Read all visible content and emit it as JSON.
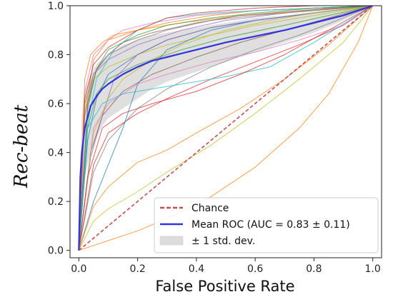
{
  "chart_data": {
    "type": "line",
    "title": "",
    "xlabel": "False Positive Rate",
    "ylabel": "Rec-beat",
    "xlim": [
      -0.03,
      1.03
    ],
    "ylim": [
      -0.03,
      1.0
    ],
    "xticks": [
      "0.0",
      "0.2",
      "0.4",
      "0.6",
      "0.8",
      "1.0"
    ],
    "yticks": [
      "0.0",
      "0.2",
      "0.4",
      "0.6",
      "0.8",
      "1.0"
    ],
    "grid": false,
    "legend_position": "bottom-right",
    "legend": {
      "chance": "Chance",
      "mean": "Mean ROC (AUC = 0.83 ± 0.11)",
      "std": "± 1 std. dev."
    },
    "chance_line": {
      "x": [
        0,
        1
      ],
      "y": [
        0,
        1
      ],
      "color": "#c0504d",
      "style": "dashed"
    },
    "mean_roc": {
      "color": "#3333dd",
      "x": [
        0,
        0.005,
        0.01,
        0.02,
        0.04,
        0.06,
        0.08,
        0.1,
        0.15,
        0.2,
        0.25,
        0.3,
        0.4,
        0.5,
        0.6,
        0.7,
        0.8,
        0.9,
        1.0
      ],
      "y": [
        0,
        0.3,
        0.4,
        0.5,
        0.59,
        0.63,
        0.66,
        0.68,
        0.72,
        0.75,
        0.775,
        0.79,
        0.82,
        0.85,
        0.875,
        0.9,
        0.93,
        0.96,
        1.0
      ]
    },
    "std_band": {
      "color": "#dcdcdc",
      "x": [
        0,
        0.01,
        0.02,
        0.04,
        0.06,
        0.08,
        0.1,
        0.15,
        0.2,
        0.25,
        0.3,
        0.4,
        0.5,
        0.6,
        0.7,
        0.8,
        0.9,
        1.0
      ],
      "upper": [
        0.1,
        0.55,
        0.65,
        0.72,
        0.76,
        0.78,
        0.8,
        0.84,
        0.86,
        0.88,
        0.89,
        0.91,
        0.93,
        0.95,
        0.96,
        0.975,
        0.99,
        1.0
      ],
      "lower": [
        0,
        0.2,
        0.3,
        0.4,
        0.46,
        0.51,
        0.54,
        0.58,
        0.62,
        0.66,
        0.69,
        0.73,
        0.77,
        0.81,
        0.85,
        0.89,
        0.94,
        1.0
      ]
    },
    "fold_curves": [
      {
        "color": "#1f77b4",
        "x": [
          0,
          0.03,
          0.06,
          0.1,
          0.2,
          0.3,
          0.45,
          0.6,
          0.8,
          1.0
        ],
        "y": [
          0,
          0.45,
          0.62,
          0.72,
          0.8,
          0.86,
          0.91,
          0.94,
          0.97,
          1.0
        ]
      },
      {
        "color": "#ff7f0e",
        "x": [
          0,
          0.02,
          0.05,
          0.1,
          0.2,
          0.3,
          0.45,
          0.6,
          0.8,
          1.0
        ],
        "y": [
          0,
          0.55,
          0.78,
          0.86,
          0.9,
          0.93,
          0.96,
          0.98,
          0.99,
          1.0
        ]
      },
      {
        "color": "#2ca02c",
        "x": [
          0,
          0.03,
          0.06,
          0.1,
          0.2,
          0.35,
          0.5,
          0.7,
          0.85,
          1.0
        ],
        "y": [
          0,
          0.5,
          0.64,
          0.7,
          0.76,
          0.82,
          0.87,
          0.92,
          0.96,
          1.0
        ]
      },
      {
        "color": "#d62728",
        "x": [
          0,
          0.05,
          0.1,
          0.2,
          0.3,
          0.45,
          0.6,
          0.75,
          0.9,
          1.0
        ],
        "y": [
          0,
          0.35,
          0.48,
          0.56,
          0.62,
          0.7,
          0.77,
          0.84,
          0.92,
          1.0
        ]
      },
      {
        "color": "#9467bd",
        "x": [
          0,
          0.02,
          0.05,
          0.1,
          0.2,
          0.35,
          0.5,
          0.7,
          0.85,
          1.0
        ],
        "y": [
          0,
          0.6,
          0.72,
          0.78,
          0.84,
          0.9,
          0.94,
          0.97,
          0.99,
          1.0
        ]
      },
      {
        "color": "#8c564b",
        "x": [
          0,
          0.04,
          0.08,
          0.15,
          0.25,
          0.4,
          0.55,
          0.7,
          0.85,
          1.0
        ],
        "y": [
          0,
          0.4,
          0.55,
          0.65,
          0.72,
          0.79,
          0.85,
          0.9,
          0.95,
          1.0
        ]
      },
      {
        "color": "#e377c2",
        "x": [
          0,
          0.02,
          0.05,
          0.1,
          0.15,
          0.25,
          0.4,
          0.6,
          0.8,
          1.0
        ],
        "y": [
          0,
          0.65,
          0.8,
          0.86,
          0.9,
          0.93,
          0.96,
          0.98,
          0.99,
          1.0
        ]
      },
      {
        "color": "#7f7f7f",
        "x": [
          0,
          0.05,
          0.1,
          0.2,
          0.3,
          0.45,
          0.6,
          0.75,
          0.9,
          1.0
        ],
        "y": [
          0,
          0.32,
          0.45,
          0.58,
          0.66,
          0.75,
          0.82,
          0.88,
          0.95,
          1.0
        ]
      },
      {
        "color": "#bcbd22",
        "x": [
          0,
          0.02,
          0.05,
          0.1,
          0.2,
          0.3,
          0.45,
          0.6,
          0.8,
          1.0
        ],
        "y": [
          0,
          0.6,
          0.7,
          0.75,
          0.8,
          0.84,
          0.88,
          0.92,
          0.96,
          1.0
        ]
      },
      {
        "color": "#17becf",
        "x": [
          0,
          0.03,
          0.06,
          0.12,
          0.2,
          0.3,
          0.45,
          0.6,
          0.8,
          1.0
        ],
        "y": [
          0,
          0.52,
          0.7,
          0.82,
          0.9,
          0.95,
          0.97,
          0.98,
          0.99,
          1.0
        ]
      },
      {
        "color": "#1f77b4",
        "x": [
          0,
          0.05,
          0.1,
          0.15,
          0.2,
          0.3,
          0.45,
          0.6,
          0.8,
          1.0
        ],
        "y": [
          0,
          0.2,
          0.35,
          0.5,
          0.68,
          0.82,
          0.9,
          0.94,
          0.97,
          1.0
        ]
      },
      {
        "color": "#ff7f0e",
        "x": [
          0,
          0.02,
          0.04,
          0.08,
          0.12,
          0.2,
          0.35,
          0.55,
          0.8,
          1.0
        ],
        "y": [
          0,
          0.7,
          0.8,
          0.85,
          0.88,
          0.9,
          0.93,
          0.96,
          0.98,
          1.0
        ]
      },
      {
        "color": "#2ca02c",
        "x": [
          0,
          0.03,
          0.06,
          0.1,
          0.2,
          0.3,
          0.45,
          0.6,
          0.8,
          1.0
        ],
        "y": [
          0,
          0.58,
          0.74,
          0.82,
          0.88,
          0.92,
          0.95,
          0.97,
          0.99,
          1.0
        ]
      },
      {
        "color": "#d62728",
        "x": [
          0,
          0.02,
          0.05,
          0.1,
          0.2,
          0.3,
          0.4,
          0.6,
          0.8,
          1.0
        ],
        "y": [
          0,
          0.62,
          0.76,
          0.83,
          0.9,
          0.95,
          0.97,
          0.99,
          1.0,
          1.0
        ]
      },
      {
        "color": "#9467bd",
        "x": [
          0,
          0.04,
          0.08,
          0.12,
          0.2,
          0.3,
          0.45,
          0.6,
          0.8,
          1.0
        ],
        "y": [
          0,
          0.38,
          0.55,
          0.7,
          0.8,
          0.86,
          0.91,
          0.94,
          0.97,
          1.0
        ]
      },
      {
        "color": "#8c564b",
        "x": [
          0,
          0.03,
          0.06,
          0.1,
          0.15,
          0.25,
          0.4,
          0.55,
          0.75,
          1.0
        ],
        "y": [
          0,
          0.6,
          0.74,
          0.8,
          0.85,
          0.89,
          0.93,
          0.96,
          0.98,
          1.0
        ]
      },
      {
        "color": "#e377c2",
        "x": [
          0,
          0.05,
          0.1,
          0.2,
          0.3,
          0.45,
          0.6,
          0.75,
          0.9,
          1.0
        ],
        "y": [
          0,
          0.5,
          0.6,
          0.68,
          0.72,
          0.77,
          0.81,
          0.86,
          0.92,
          1.0
        ]
      },
      {
        "color": "#bcbd22",
        "x": [
          0,
          0.05,
          0.1,
          0.15,
          0.25,
          0.35,
          0.5,
          0.65,
          0.8,
          1.0
        ],
        "y": [
          0,
          0.48,
          0.62,
          0.7,
          0.78,
          0.84,
          0.9,
          0.94,
          0.97,
          1.0
        ]
      },
      {
        "color": "#17becf",
        "x": [
          0,
          0.03,
          0.08,
          0.15,
          0.25,
          0.35,
          0.5,
          0.65,
          0.8,
          1.0
        ],
        "y": [
          0,
          0.5,
          0.6,
          0.64,
          0.66,
          0.68,
          0.71,
          0.75,
          0.85,
          1.0
        ]
      },
      {
        "color": "#d62728",
        "x": [
          0,
          0.03,
          0.08,
          0.15,
          0.25,
          0.4,
          0.55,
          0.7,
          0.85,
          1.0
        ],
        "y": [
          0,
          0.3,
          0.5,
          0.56,
          0.6,
          0.65,
          0.72,
          0.8,
          0.9,
          1.0
        ]
      },
      {
        "color": "#ff7f0e",
        "x": [
          0,
          0.05,
          0.1,
          0.2,
          0.3,
          0.4,
          0.55,
          0.7,
          0.85,
          1.0
        ],
        "y": [
          0,
          0.18,
          0.26,
          0.36,
          0.41,
          0.48,
          0.58,
          0.7,
          0.84,
          1.0
        ]
      },
      {
        "color": "#bcbd22",
        "x": [
          0,
          0.05,
          0.1,
          0.2,
          0.3,
          0.45,
          0.6,
          0.75,
          0.9,
          1.0
        ],
        "y": [
          0,
          0.12,
          0.17,
          0.24,
          0.32,
          0.43,
          0.56,
          0.7,
          0.85,
          1.0
        ]
      },
      {
        "color": "#ff7f0e",
        "x": [
          0,
          0.1,
          0.2,
          0.3,
          0.45,
          0.6,
          0.75,
          0.85,
          0.95,
          1.0
        ],
        "y": [
          0,
          0.04,
          0.08,
          0.13,
          0.22,
          0.34,
          0.5,
          0.64,
          0.85,
          1.0
        ]
      },
      {
        "color": "#7f7f7f",
        "x": [
          0,
          0.02,
          0.05,
          0.1,
          0.2,
          0.3,
          0.45,
          0.6,
          0.8,
          1.0
        ],
        "y": [
          0,
          0.55,
          0.72,
          0.8,
          0.86,
          0.9,
          0.94,
          0.96,
          0.98,
          1.0
        ]
      }
    ]
  }
}
